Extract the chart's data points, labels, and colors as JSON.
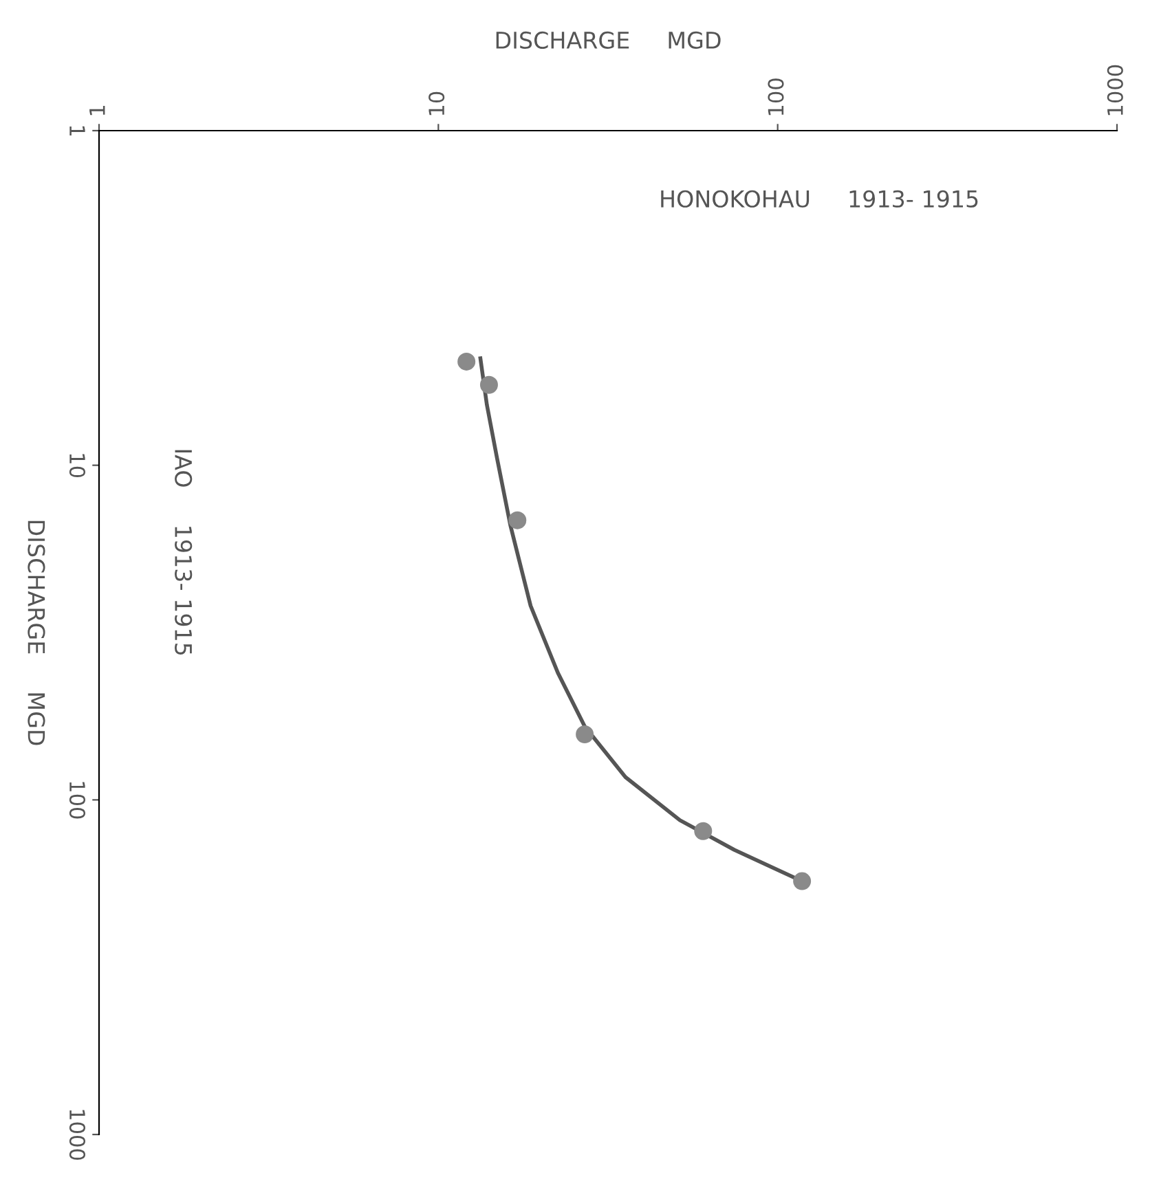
{
  "chart_data": {
    "type": "scatter",
    "xlabel": "DISCHARGE     MGD",
    "ylabel": "DISCHARGE     MGD",
    "log": "xy",
    "grid": false,
    "legend": false,
    "marker": "circle",
    "xlim": [
      1,
      1000
    ],
    "xticks": [
      1,
      10,
      100,
      1000
    ],
    "ylim": [
      1000,
      1
    ],
    "yticks": [
      1,
      10,
      100,
      1000
    ],
    "annotations": [
      "HONOKOHAU     1913- 1915",
      "IAO     1913- 1915"
    ],
    "series": [
      {
        "color": "#8a8a8a",
        "x": [
          12.1,
          14.1,
          17.1,
          27,
          60.3,
          118
        ],
        "values": [
          4.9,
          5.75,
          14.6,
          63.7,
          124,
          175
        ]
      },
      {
        "type": "line",
        "color": "#555555",
        "marker": "none",
        "x": [
          13.3,
          13.9,
          14.9,
          16.3,
          18.7,
          22.5,
          27,
          35.6,
          51.5,
          74.5,
          118
        ],
        "values": [
          4.79,
          6.6,
          9.55,
          15.1,
          26.3,
          41.7,
          60.3,
          85.5,
          115,
          141,
          175
        ]
      }
    ]
  }
}
